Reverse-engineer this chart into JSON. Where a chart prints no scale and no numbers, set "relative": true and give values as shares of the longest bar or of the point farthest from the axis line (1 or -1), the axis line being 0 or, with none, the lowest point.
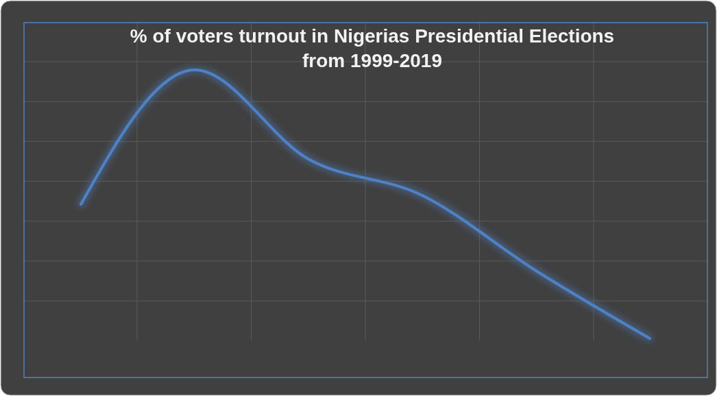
{
  "chart_data": {
    "type": "line",
    "title": "% of voters turnout in Nigerias Presidential Elections from 1999-2019",
    "categories": [
      null,
      null,
      null,
      null,
      null,
      null
    ],
    "relative": true,
    "grid": true,
    "series": [
      {
        "color": "#4f81c7",
        "values": [
          0.563,
          1,
          0.71,
          0.592,
          0.347,
          0.127
        ]
      }
    ]
  }
}
